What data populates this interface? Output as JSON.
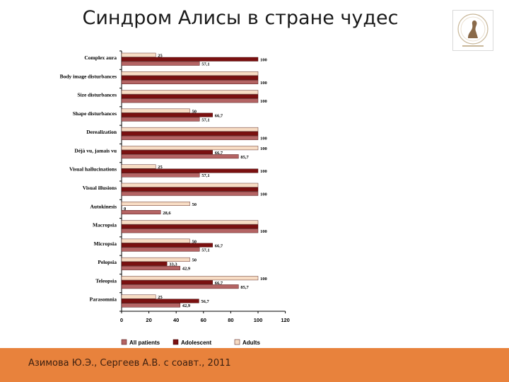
{
  "slide": {
    "title": "Синдром Алисы в стране чудес",
    "footer": "Азимова Ю.Э., Сергеев А.В. с соавт., 2011"
  },
  "colors": {
    "all_patients": "#b46464",
    "adolescent": "#7a1010",
    "adults": "#f7dcc4",
    "footer_bg": "#e8823c"
  },
  "chart_data": {
    "type": "bar",
    "orientation": "horizontal",
    "categories": [
      "Complex aura",
      "Body image disturbances",
      "Size disturbances",
      "Shape disturbances",
      "Derealization",
      "Déjà vu, jamais vu",
      "Visual hallucinations",
      "Visual illusions",
      "Autokinesis",
      "Macropsia",
      "Micropsia",
      "Pelopsia",
      "Teleopsia",
      "Parasomnia"
    ],
    "series": [
      {
        "name": "Adults",
        "values": [
          25,
          100,
          100,
          50,
          100,
          100,
          25,
          100,
          50,
          100,
          50,
          50,
          100,
          25
        ],
        "labels": [
          "25",
          "",
          "",
          "50",
          "",
          "100",
          "25",
          "",
          "50",
          "",
          "50",
          "50",
          "100",
          "25"
        ]
      },
      {
        "name": "Adolescent",
        "values": [
          100,
          100,
          100,
          66.7,
          100,
          66.7,
          100,
          100,
          0,
          100,
          66.7,
          33.3,
          66.7,
          56.7
        ],
        "labels": [
          "100",
          "",
          "",
          "66,7",
          "",
          "66,7",
          "100",
          "",
          "0",
          "",
          "66,7",
          "33,3",
          "66,7",
          "56,7"
        ]
      },
      {
        "name": "All patients",
        "values": [
          57.1,
          100,
          100,
          57.1,
          100,
          85.7,
          57.1,
          100,
          28.6,
          100,
          57.1,
          42.9,
          85.7,
          42.9
        ],
        "labels": [
          "57,1",
          "100",
          "100",
          "57,1",
          "100",
          "85,7",
          "57,1",
          "100",
          "28,6",
          "100",
          "57,1",
          "42,9",
          "85,7",
          "42,9"
        ]
      }
    ],
    "xlim": [
      0,
      120
    ],
    "xticks": [
      "0",
      "20",
      "40",
      "60",
      "80",
      "100",
      "120"
    ],
    "legend": {
      "position": "bottom",
      "order": [
        "All patients",
        "Adolescent",
        "Adults"
      ]
    },
    "grid": false
  }
}
